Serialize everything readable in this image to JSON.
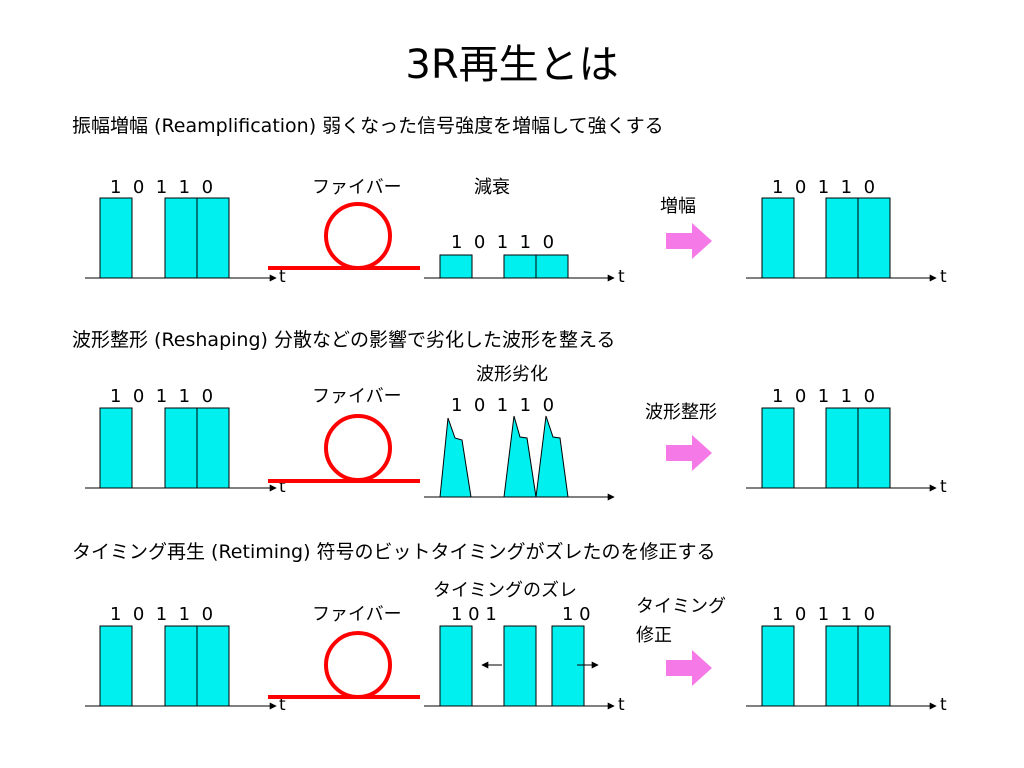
{
  "title": "3R再生とは",
  "colors": {
    "pulse": "#00f0f0",
    "fiber": "#ff0000",
    "arrow": "#f57ae8",
    "line": "#000000"
  },
  "axis_label": "t",
  "fiber_label": "ファイバー",
  "bits_spaced": "1  0  1  1  0",
  "sections": [
    {
      "heading": "振幅増幅 (Reamplification)   弱くなった信号強度を増幅して強くする",
      "middle_label": "減衰",
      "middle_bits": "1  0  1  1  0",
      "action_label": [
        "増幅"
      ]
    },
    {
      "heading": "波形整形 (Reshaping)   分散などの影響で劣化した波形を整える",
      "middle_label": "波形劣化",
      "middle_bits": "1  0  1  1  0",
      "action_label": [
        "波形整形"
      ]
    },
    {
      "heading": "タイミング再生 (Retiming)   符号のビットタイミングがズレたのを修正する",
      "middle_label": "タイミングのズレ",
      "middle_bits_left": "1 0 1",
      "middle_bits_right": "1 0",
      "action_label": [
        "タイミング",
        "修正"
      ]
    }
  ]
}
